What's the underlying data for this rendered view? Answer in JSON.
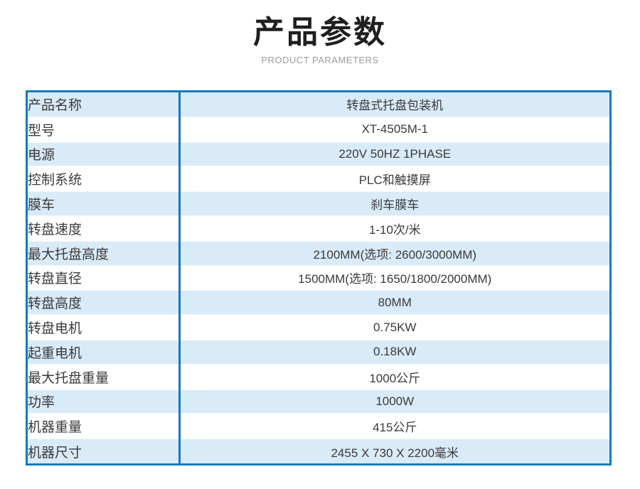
{
  "header": {
    "title": "产品参数",
    "subtitle": "PRODUCT PARAMETERS"
  },
  "colors": {
    "accent_blue": "#1779be",
    "row_alt_bg": "#d9eaf8",
    "row_bg": "#ffffff",
    "title_text": "#1f1f1f",
    "subtitle_text": "#9b9b9b",
    "cell_text": "#3a3a3a"
  },
  "table": {
    "rows": [
      {
        "label": "产品名称",
        "value": "转盘式托盘包装机"
      },
      {
        "label": "型号",
        "value": "XT-4505M-1"
      },
      {
        "label": "电源",
        "value": "220V 50HZ 1PHASE"
      },
      {
        "label": "控制系统",
        "value": "PLC和触摸屏"
      },
      {
        "label": "膜车",
        "value": "刹车膜车"
      },
      {
        "label": "转盘速度",
        "value": "1-10次/米"
      },
      {
        "label": "最大托盘高度",
        "value": "2100MM(选项: 2600/3000MM)"
      },
      {
        "label": "转盘直径",
        "value": "1500MM(选项: 1650/1800/2000MM)"
      },
      {
        "label": "转盘高度",
        "value": "80MM"
      },
      {
        "label": "转盘电机",
        "value": "0.75KW"
      },
      {
        "label": "起重电机",
        "value": "0.18KW"
      },
      {
        "label": "最大托盘重量",
        "value": "1000公斤"
      },
      {
        "label": "功率",
        "value": "1000W"
      },
      {
        "label": "机器重量",
        "value": "415公斤"
      },
      {
        "label": "机器尺寸",
        "value": "2455 X 730 X 2200毫米"
      }
    ]
  }
}
